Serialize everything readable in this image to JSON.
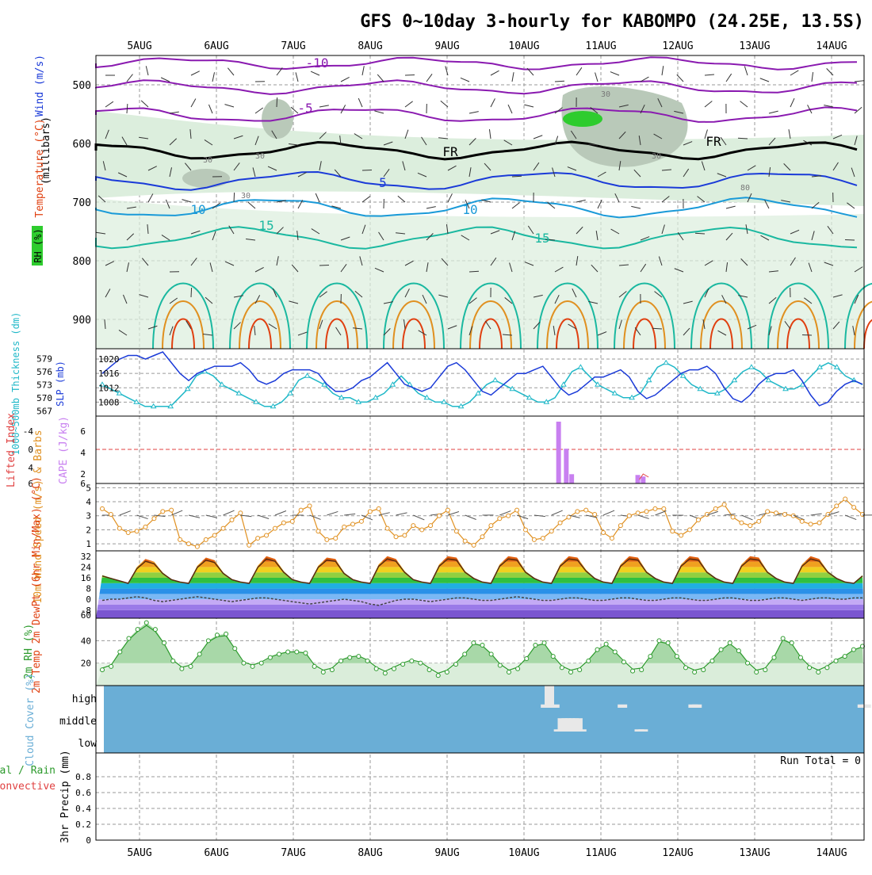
{
  "title": "GFS 0~10day 3-hourly for KABOMPO (24.25E, 13.5S)",
  "days": [
    "5AUG",
    "6AUG",
    "7AUG",
    "8AUG",
    "9AUG",
    "10AUG",
    "11AUG",
    "12AUG",
    "13AUG",
    "14AUG"
  ],
  "colors": {
    "grid": "#9a9a9a",
    "rh_green": "#2ecc2e",
    "rh_light": "#dceedd",
    "rh_mid": "#b9c9b9",
    "temp_purple": "#8a1ab0",
    "temp_blue": "#1a3ad8",
    "temp_sky": "#1a9ad8",
    "temp_teal": "#1ab8a0",
    "temp_orange": "#e09020",
    "temp_red": "#e04010",
    "slp": "#1a3ad8",
    "thick": "#20b8c8",
    "cape": "#c880f0",
    "li": "#e04040",
    "wind10": "#e09020",
    "cloud": "#6aaed6",
    "rh2m": "#2c9a2c"
  },
  "panels": {
    "upper_air": {
      "y_label": "(millibars)",
      "side_labels": [
        "Wind (m/s)",
        "Temperature (°C)",
        "RH (%)"
      ],
      "y_ticks": [
        "500",
        "600",
        "700",
        "800",
        "900"
      ],
      "contour_labels": [
        "-10",
        "-5",
        "FR",
        "FR",
        "5",
        "10",
        "10",
        "15",
        "15",
        "30",
        "30",
        "30",
        "30",
        "30",
        "80"
      ]
    },
    "slp": {
      "left_label": "1000~500mb Thickness (dm)",
      "right_label": "SLP (mb)",
      "thick_ticks": [
        "579",
        "576",
        "573",
        "570",
        "567"
      ],
      "slp_ticks": [
        "1020",
        "1016",
        "1012",
        "1008"
      ]
    },
    "cape": {
      "left_label": "Lifted Index",
      "right_label": "CAPE (J/kg)",
      "li_ticks": [
        "-4",
        "0",
        "4"
      ],
      "cape_ticks": [
        "2",
        "4",
        "6"
      ],
      "bottom_left": "6",
      "bottom_right": "6"
    },
    "wind10": {
      "label": "10m Wind Speed (m/s) & Barbs",
      "y_ticks": [
        "5",
        "4",
        "3",
        "2",
        "1"
      ]
    },
    "temp2m": {
      "label": "2m Temp 2m DewPt (6hr Min/Max) (°C)",
      "y_ticks": [
        "32",
        "24",
        "16",
        "8",
        "0",
        "-8",
        "60"
      ]
    },
    "rh2m": {
      "label": "2m RH (%)",
      "y_ticks": [
        "40",
        "20"
      ]
    },
    "cloud": {
      "label": "Cloud Cover (%)",
      "levels": [
        "high",
        "middle",
        "low"
      ]
    },
    "precip": {
      "left_label_1": "Total / Rain",
      "left_label_2": "Convective",
      "y_label": "3hr Precip (mm)",
      "run_total": "Run Total = 0",
      "y_ticks": [
        "0.8",
        "0.6",
        "0.4",
        "0.2",
        "0"
      ]
    }
  },
  "chart_data": [
    {
      "type": "line",
      "title": "Sea level pressure and 1000-500mb thickness",
      "x_unit": "days since 5 Aug 00Z, 3-hourly",
      "series": [
        {
          "name": "SLP (mb)",
          "ylim": [
            1005,
            1022
          ],
          "values": [
            1016,
            1018,
            1020,
            1021,
            1021,
            1020,
            1021,
            1022,
            1019,
            1016,
            1014,
            1016,
            1017,
            1018,
            1018,
            1018,
            1019,
            1017,
            1014,
            1013,
            1014,
            1016,
            1017,
            1017,
            1017,
            1016,
            1013,
            1011,
            1011,
            1012,
            1014,
            1015,
            1017,
            1019,
            1016,
            1013,
            1012,
            1011,
            1012,
            1015,
            1018,
            1019,
            1017,
            1014,
            1011,
            1010,
            1012,
            1014,
            1016,
            1016,
            1017,
            1018,
            1015,
            1012,
            1010,
            1011,
            1013,
            1015,
            1015,
            1016,
            1017,
            1015,
            1011,
            1009,
            1010,
            1012,
            1014,
            1016,
            1017,
            1017,
            1018,
            1016,
            1012,
            1009,
            1008,
            1010,
            1013,
            1015,
            1016,
            1016,
            1017,
            1014,
            1010,
            1007,
            1008,
            1011,
            1013,
            1014,
            1013
          ]
        },
        {
          "name": "1000-500mb Thickness (dm)",
          "ylim": [
            566.5,
            580.5
          ],
          "values": [
            573,
            572,
            571,
            570,
            569,
            568,
            568,
            568,
            568,
            570,
            572,
            575,
            576,
            575,
            573,
            572,
            571,
            570,
            569,
            568,
            568,
            569,
            571,
            574,
            575,
            574,
            573,
            571,
            570,
            570,
            569,
            569,
            570,
            571,
            573,
            575,
            573,
            571,
            570,
            569,
            569,
            568,
            568,
            569,
            571,
            573,
            574,
            573,
            572,
            571,
            570,
            569,
            569,
            570,
            573,
            576,
            577,
            575,
            573,
            572,
            571,
            570,
            570,
            571,
            574,
            577,
            578,
            577,
            575,
            573,
            572,
            571,
            571,
            572,
            574,
            576,
            577,
            576,
            574,
            573,
            572,
            572,
            573,
            575,
            577,
            578,
            577,
            575,
            574,
            573
          ]
        }
      ]
    },
    {
      "type": "bar",
      "title": "CAPE and Lifted Index",
      "series": [
        {
          "name": "CAPE (J/kg)",
          "x_days": [
            5.45,
            5.55,
            5.62,
            6.48,
            6.55
          ],
          "values": [
            8,
            4.5,
            1.2,
            1.1,
            0.9
          ]
        }
      ],
      "lifted_index_zero_line": 0
    },
    {
      "type": "line",
      "title": "10m wind speed (m/s)",
      "ylim": [
        0.5,
        5.3
      ],
      "values": [
        3.5,
        3.1,
        2.1,
        1.8,
        1.9,
        2.2,
        2.8,
        3.3,
        3.4,
        1.3,
        1.0,
        0.8,
        1.3,
        1.6,
        2.1,
        2.7,
        3.2,
        0.9,
        1.4,
        1.6,
        2.1,
        2.5,
        2.6,
        3.4,
        3.7,
        1.9,
        1.3,
        1.4,
        2.2,
        2.4,
        2.6,
        3.3,
        3.5,
        2.1,
        1.5,
        1.6,
        2.3,
        2.0,
        2.3,
        3.0,
        3.4,
        1.9,
        1.2,
        0.9,
        1.5,
        2.3,
        2.8,
        3.0,
        3.4,
        2.0,
        1.3,
        1.4,
        1.9,
        2.5,
        2.9,
        3.3,
        3.4,
        3.1,
        1.8,
        1.4,
        2.3,
        3.0,
        3.2,
        3.3,
        3.5,
        3.5,
        1.9,
        1.6,
        2.0,
        2.7,
        3.1,
        3.5,
        3.8,
        2.9,
        2.5,
        2.3,
        2.6,
        3.3,
        3.2,
        3.1,
        3.0,
        2.6,
        2.4,
        2.5,
        3.1,
        3.7,
        4.2,
        3.6,
        3.1
      ]
    },
    {
      "type": "area",
      "title": "2m temperature and dew point (°C)",
      "series": [
        {
          "name": "2m Temp",
          "daily_min": 12,
          "daily_max": 32,
          "values": [
            18,
            16,
            14,
            12,
            24,
            30,
            28,
            20,
            15,
            13,
            12,
            25,
            31,
            29,
            20,
            15,
            13,
            12,
            25,
            32,
            30,
            21,
            15,
            13,
            12,
            25,
            31,
            30,
            20,
            15,
            13,
            12,
            26,
            32,
            30,
            21,
            15,
            13,
            12,
            26,
            32,
            31,
            21,
            16,
            13,
            12,
            26,
            32,
            31,
            21,
            16,
            13,
            12,
            26,
            32,
            31,
            22,
            16,
            13,
            12,
            26,
            32,
            31,
            21,
            16,
            13,
            12,
            26,
            32,
            31,
            21,
            16,
            13,
            12,
            26,
            32,
            31,
            21,
            16,
            13,
            12,
            26,
            32,
            30,
            21,
            16,
            13,
            12,
            18
          ]
        },
        {
          "name": "2m DewPt",
          "values": [
            -2,
            -1,
            -1,
            0,
            1,
            0,
            -2,
            -3,
            -2,
            -1,
            0,
            1,
            0,
            -1,
            -2,
            -3,
            -2,
            -1,
            0,
            0,
            -1,
            -2,
            -3,
            -4,
            -5,
            -4,
            -3,
            -2,
            -1,
            -2,
            -3,
            -5,
            -6,
            -4,
            -2,
            -1,
            -1,
            -2,
            -3,
            -2,
            -1,
            0,
            0,
            -1,
            -2,
            -2,
            -1,
            0,
            1,
            0,
            -1,
            -2,
            -2,
            -1,
            0,
            0,
            -1,
            -2,
            -2,
            -1,
            0,
            0,
            -1,
            -2,
            -2,
            -1,
            0,
            0,
            -1,
            -2,
            -2,
            -1,
            0,
            0,
            -1,
            -2,
            -2,
            -1,
            0,
            0,
            -1,
            -2,
            -1,
            0,
            0,
            -1,
            -1,
            0,
            0
          ]
        }
      ]
    },
    {
      "type": "area",
      "title": "2m relative humidity (%)",
      "ylim": [
        0,
        60
      ],
      "values": [
        14,
        17,
        30,
        42,
        50,
        56,
        50,
        38,
        22,
        15,
        17,
        28,
        40,
        45,
        46,
        33,
        20,
        17,
        20,
        25,
        28,
        30,
        30,
        29,
        17,
        12,
        14,
        22,
        25,
        26,
        22,
        15,
        11,
        15,
        19,
        22,
        20,
        14,
        9,
        12,
        19,
        28,
        38,
        36,
        28,
        18,
        12,
        15,
        24,
        36,
        38,
        26,
        16,
        12,
        14,
        22,
        32,
        37,
        30,
        21,
        13,
        14,
        26,
        40,
        38,
        26,
        16,
        12,
        14,
        22,
        32,
        38,
        31,
        20,
        12,
        14,
        25,
        42,
        38,
        25,
        16,
        12,
        16,
        22,
        26,
        32,
        35
      ]
    },
    {
      "type": "bar",
      "title": "Cloud cover (%)",
      "layers": [
        {
          "name": "high",
          "x_days": [
            5.28,
            5.33,
            5.4,
            6.28,
            7.2,
            7.25,
            9.4,
            9.45
          ],
          "values": [
            15,
            100,
            15,
            15,
            15,
            15,
            15,
            15
          ]
        },
        {
          "name": "middle",
          "x_days": [
            5.45,
            5.5,
            5.55,
            5.6,
            5.65,
            5.7,
            5.75,
            6.5,
            6.55
          ],
          "values": [
            10,
            60,
            60,
            60,
            60,
            60,
            10,
            10,
            10
          ]
        },
        {
          "name": "low",
          "x_days": [],
          "values": []
        }
      ]
    },
    {
      "type": "bar",
      "title": "3hr precipitation (mm)",
      "ylim": [
        0,
        1
      ],
      "values": [],
      "run_total": 0
    }
  ]
}
